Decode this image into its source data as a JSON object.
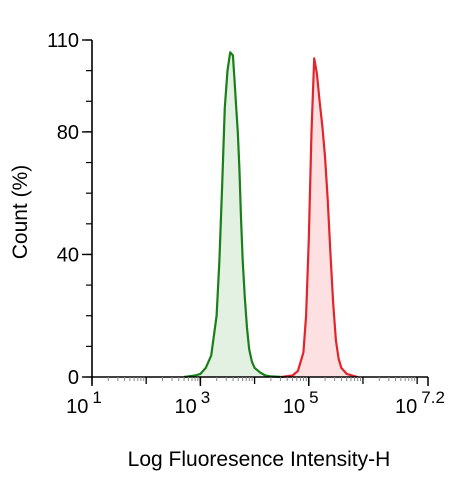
{
  "chart_data": {
    "type": "area",
    "xlabel": "Log Fluoresence Intensity-H",
    "ylabel": "Count  (%)",
    "x_scale": "log10",
    "xlim": [
      1,
      7.2
    ],
    "ylim": [
      0,
      110
    ],
    "x_ticks": [
      {
        "value": 1,
        "base": "10",
        "exp": "1"
      },
      {
        "value": 3,
        "base": "10",
        "exp": "3"
      },
      {
        "value": 5,
        "base": "10",
        "exp": "5"
      },
      {
        "value": 7.2,
        "base": "10",
        "exp": "7.2"
      }
    ],
    "y_ticks": [
      {
        "value": 0,
        "label": "0"
      },
      {
        "value": 40,
        "label": "40"
      },
      {
        "value": 80,
        "label": "80"
      },
      {
        "value": 110,
        "label": "110"
      }
    ],
    "grid": false,
    "legend": "none",
    "series": [
      {
        "color": "#1a7f1a",
        "fill": "#e3f1e3",
        "x": [
          2.7,
          2.9,
          3.0,
          3.1,
          3.2,
          3.3,
          3.35,
          3.4,
          3.45,
          3.5,
          3.55,
          3.6,
          3.63,
          3.66,
          3.69,
          3.72,
          3.75,
          3.78,
          3.82,
          3.86,
          3.9,
          3.95,
          4.0,
          4.1,
          4.2,
          4.3,
          4.5
        ],
        "y": [
          0,
          0.5,
          1,
          3,
          7,
          20,
          38,
          62,
          88,
          100,
          106,
          105,
          97,
          88,
          80,
          68,
          52,
          38,
          26,
          16,
          9,
          5,
          3,
          1.5,
          0.5,
          0.2,
          0
        ]
      },
      {
        "color": "#e3242b",
        "fill": "#fde0e2",
        "x": [
          4.5,
          4.7,
          4.8,
          4.9,
          4.95,
          5.0,
          5.05,
          5.1,
          5.15,
          5.2,
          5.25,
          5.3,
          5.35,
          5.4,
          5.45,
          5.5,
          5.55,
          5.6,
          5.7,
          5.9
        ],
        "y": [
          0,
          0.5,
          2,
          8,
          20,
          45,
          80,
          104,
          99,
          90,
          82,
          72,
          58,
          40,
          24,
          12,
          6,
          3,
          1,
          0
        ]
      }
    ]
  }
}
